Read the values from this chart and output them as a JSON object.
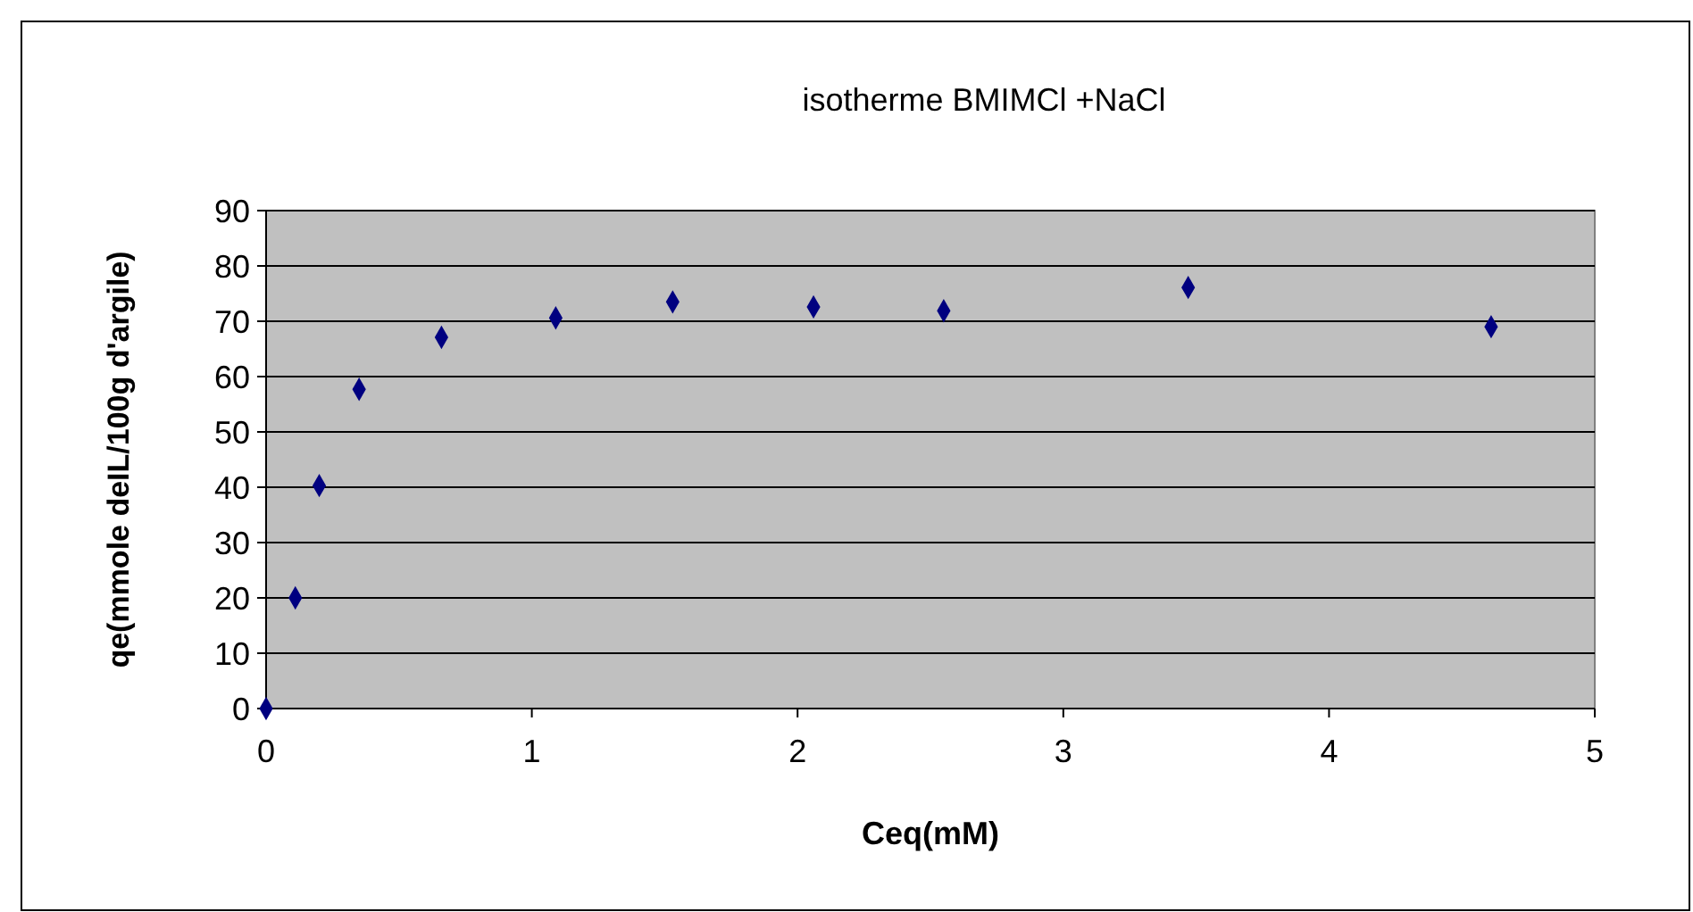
{
  "chart_data": {
    "type": "scatter",
    "title": "isotherme BMIMCl +NaCl",
    "xlabel": "Ceq(mM)",
    "ylabel": "qe(mmole deIL/100g d'argile)",
    "x": [
      0,
      0.11,
      0.2,
      0.35,
      0.66,
      1.09,
      1.53,
      2.06,
      2.55,
      3.47,
      4.61
    ],
    "series": [
      {
        "color": "#000080",
        "values": [
          0,
          20,
          40.3,
          57.7,
          67.1,
          70.6,
          73.5,
          72.6,
          71.9,
          76.1,
          69.0
        ]
      }
    ],
    "xlim": [
      0,
      5
    ],
    "xticks": [
      0,
      1,
      2,
      3,
      4,
      5
    ],
    "ylim": [
      0,
      90
    ],
    "yticks": [
      0,
      10,
      20,
      30,
      40,
      50,
      60,
      70,
      80,
      90
    ],
    "grid": "y",
    "marker": "diamond"
  }
}
